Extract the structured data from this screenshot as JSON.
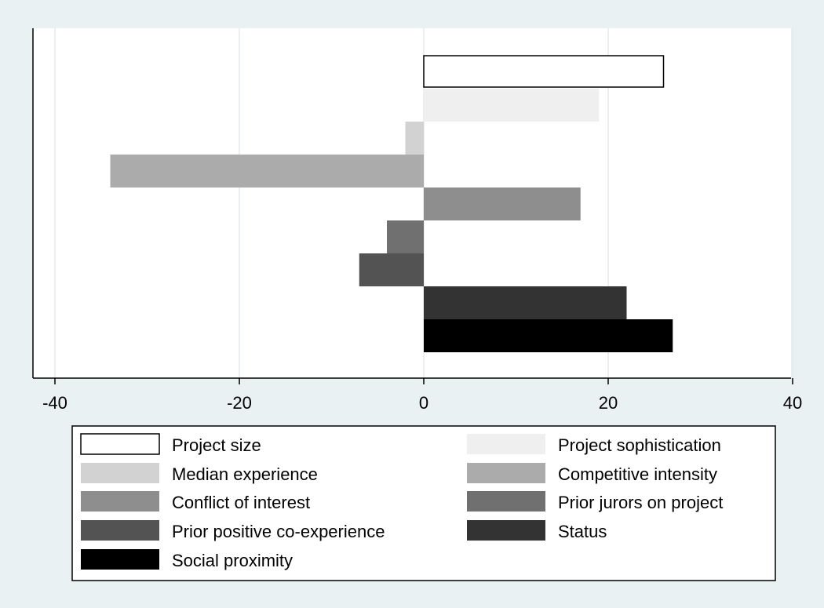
{
  "chart_data": {
    "type": "bar",
    "orientation": "horizontal",
    "xlim": [
      -40,
      40
    ],
    "x_ticks": [
      -40,
      -20,
      0,
      20,
      40
    ],
    "x_tick_labels": [
      "-40",
      "-20",
      "0",
      "20",
      "40"
    ],
    "grid": true,
    "legend_position": "bottom",
    "series": [
      {
        "name": "Project size",
        "value": 26,
        "color": "#ffffff",
        "stroke": "#000000"
      },
      {
        "name": "Project sophistication",
        "value": 19,
        "color": "#efefef"
      },
      {
        "name": "Median experience",
        "value": -2,
        "color": "#d2d2d2"
      },
      {
        "name": "Competitive intensity",
        "value": -34,
        "color": "#ababab"
      },
      {
        "name": "Conflict of interest",
        "value": 17,
        "color": "#8e8e8e"
      },
      {
        "name": "Prior jurors on project",
        "value": -4,
        "color": "#707070"
      },
      {
        "name": "Prior positive co-experience",
        "value": -7,
        "color": "#535353"
      },
      {
        "name": "Status",
        "value": 22,
        "color": "#333333"
      },
      {
        "name": "Social proximity",
        "value": 27,
        "color": "#000000"
      }
    ]
  }
}
